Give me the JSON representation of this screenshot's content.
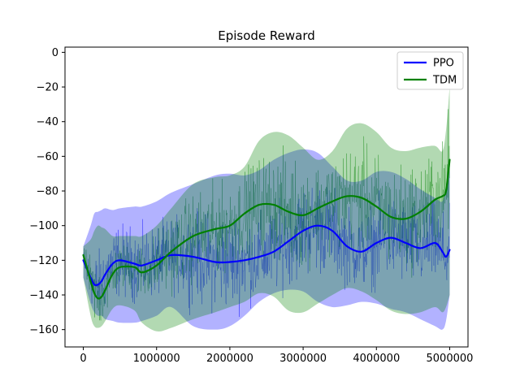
{
  "chart_data": {
    "type": "line",
    "title": "Episode Reward",
    "xlabel": "",
    "ylabel": "",
    "xlim": [
      -250000,
      5250000
    ],
    "ylim": [
      -170,
      3
    ],
    "x_ticks": [
      0,
      1000000,
      2000000,
      3000000,
      4000000,
      5000000
    ],
    "x_tick_labels": [
      "0",
      "1000000",
      "2000000",
      "3000000",
      "4000000",
      "5000000"
    ],
    "y_ticks": [
      0,
      -20,
      -40,
      -60,
      -80,
      -100,
      -120,
      -140,
      -160
    ],
    "y_tick_labels": [
      "0",
      "−20",
      "−40",
      "−60",
      "−80",
      "−100",
      "−120",
      "−140",
      "−160"
    ],
    "grid": false,
    "legend_placement": "top-right",
    "x": [
      0,
      100000,
      150000,
      200000,
      250000,
      300000,
      400000,
      500000,
      700000,
      800000,
      1000000,
      1200000,
      1500000,
      1800000,
      2000000,
      2200000,
      2400000,
      2600000,
      2800000,
      3000000,
      3200000,
      3400000,
      3600000,
      3800000,
      4000000,
      4200000,
      4400000,
      4600000,
      4800000,
      4900000,
      4950000,
      5000000
    ],
    "series": [
      {
        "name": "PPO",
        "color": "#0000ff",
        "band_color": "#0000ff",
        "mean": [
          -120,
          -130,
          -134,
          -134,
          -132,
          -128,
          -122,
          -120,
          -122,
          -123,
          -120,
          -117,
          -118,
          -121,
          -121,
          -120,
          -118,
          -115,
          -109,
          -103,
          -100,
          -103,
          -112,
          -115,
          -110,
          -107,
          -110,
          -113,
          -110,
          -115,
          -118,
          -114
        ],
        "upper": [
          -112,
          -100,
          -93,
          -92,
          -91,
          -90,
          -91,
          -90,
          -89,
          -89,
          -86,
          -81,
          -76,
          -71,
          -70,
          -71,
          -68,
          -62,
          -58,
          -56,
          -58,
          -66,
          -74,
          -74,
          -69,
          -69,
          -73,
          -79,
          -84,
          -86,
          -78,
          -68
        ],
        "lower": [
          -130,
          -145,
          -150,
          -152,
          -152,
          -154,
          -155,
          -156,
          -156,
          -155,
          -152,
          -147,
          -158,
          -160,
          -158,
          -152,
          -144,
          -139,
          -137,
          -138,
          -144,
          -147,
          -146,
          -144,
          -145,
          -148,
          -150,
          -154,
          -158,
          -160,
          -155,
          -140
        ]
      },
      {
        "name": "TDM",
        "color": "#008000",
        "band_color": "#008000",
        "mean": [
          -117,
          -132,
          -139,
          -142,
          -141,
          -137,
          -128,
          -124,
          -124,
          -127,
          -123,
          -115,
          -106,
          -102,
          -100,
          -93,
          -88,
          -88,
          -92,
          -94,
          -90,
          -86,
          -83,
          -84,
          -89,
          -95,
          -96,
          -92,
          -85,
          -83,
          -80,
          -62
        ],
        "upper": [
          -112,
          -108,
          -103,
          -100,
          -101,
          -102,
          -106,
          -106,
          -106,
          -106,
          -100,
          -90,
          -76,
          -72,
          -71,
          -66,
          -51,
          -46,
          -48,
          -55,
          -62,
          -57,
          -44,
          -41,
          -46,
          -55,
          -57,
          -55,
          -54,
          -57,
          -45,
          -20
        ],
        "lower": [
          -130,
          -152,
          -158,
          -159,
          -158,
          -155,
          -148,
          -146,
          -149,
          -156,
          -161,
          -159,
          -154,
          -150,
          -147,
          -144,
          -139,
          -141,
          -149,
          -150,
          -145,
          -140,
          -136,
          -138,
          -143,
          -149,
          -151,
          -150,
          -147,
          -150,
          -147,
          -140
        ]
      }
    ]
  }
}
